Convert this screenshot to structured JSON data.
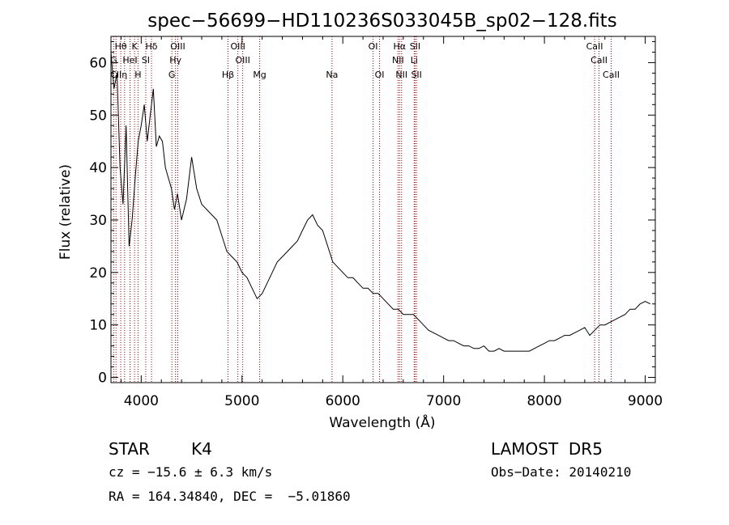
{
  "chart_data": {
    "type": "line",
    "title": "spec−56699−HD110236S033045B_sp02−128.fits",
    "xlabel": "Wavelength (Å)",
    "ylabel": "Flux (relative)",
    "xlim": [
      3700,
      9100
    ],
    "ylim": [
      -1,
      65
    ],
    "x_ticks": [
      4000,
      5000,
      6000,
      7000,
      8000,
      9000
    ],
    "y_ticks": [
      0,
      10,
      20,
      30,
      40,
      50,
      60
    ],
    "grid": false,
    "line_color": "#000000",
    "marker_color": "#aa0000",
    "series": [
      {
        "x": [
          3700,
          3730,
          3760,
          3790,
          3820,
          3850,
          3880,
          3910,
          3940,
          3970,
          4000,
          4030,
          4060,
          4090,
          4120,
          4150,
          4180,
          4210,
          4240,
          4270,
          4300,
          4330,
          4360,
          4400,
          4450,
          4500,
          4550,
          4600,
          4650,
          4700,
          4750,
          4800,
          4850,
          4900,
          4950,
          5000,
          5050,
          5100,
          5150,
          5200,
          5250,
          5300,
          5350,
          5400,
          5450,
          5500,
          5550,
          5600,
          5650,
          5700,
          5750,
          5800,
          5850,
          5900,
          5950,
          6000,
          6050,
          6100,
          6150,
          6200,
          6250,
          6300,
          6350,
          6400,
          6450,
          6500,
          6550,
          6600,
          6650,
          6700,
          6750,
          6800,
          6850,
          6900,
          6950,
          7000,
          7050,
          7100,
          7150,
          7200,
          7250,
          7300,
          7350,
          7400,
          7450,
          7500,
          7550,
          7600,
          7650,
          7700,
          7750,
          7800,
          7850,
          7900,
          7950,
          8000,
          8050,
          8100,
          8150,
          8200,
          8250,
          8300,
          8350,
          8400,
          8450,
          8500,
          8550,
          8600,
          8650,
          8700,
          8750,
          8800,
          8850,
          8900,
          8950,
          9000,
          9050
        ],
        "y": [
          62,
          55,
          58,
          40,
          33,
          48,
          25,
          30,
          38,
          45,
          48,
          52,
          45,
          50,
          55,
          44,
          46,
          45,
          40,
          38,
          36,
          32,
          35,
          30,
          34,
          42,
          36,
          33,
          32,
          31,
          30,
          27,
          24,
          23,
          22,
          20,
          19,
          17,
          15,
          16,
          18,
          20,
          22,
          23,
          24,
          25,
          26,
          28,
          30,
          31,
          29,
          28,
          25,
          22,
          21,
          20,
          19,
          19,
          18,
          17,
          17,
          16,
          16,
          15,
          14,
          13,
          13,
          12,
          12,
          12,
          11,
          10,
          9,
          8.5,
          8,
          7.5,
          7,
          7,
          6.5,
          6,
          6,
          5.5,
          5.5,
          6,
          5,
          5,
          5.5,
          5,
          5,
          5,
          5,
          5,
          5,
          5.5,
          6,
          6.5,
          7,
          7,
          7.5,
          8,
          8,
          8.5,
          9,
          9.5,
          8,
          9,
          10,
          10,
          10.5,
          11,
          11.5,
          12,
          13,
          13,
          14,
          14.5,
          14
        ]
      }
    ],
    "spectral_lines": [
      {
        "label": "Hθ",
        "x": 3797,
        "row": 0
      },
      {
        "label": "K",
        "x": 3934,
        "row": 0
      },
      {
        "label": "Hδ",
        "x": 4102,
        "row": 0
      },
      {
        "label": "OIII",
        "x": 4363,
        "row": 0
      },
      {
        "label": "OIII",
        "x": 4959,
        "row": 0
      },
      {
        "label": "OI",
        "x": 6300,
        "row": 0
      },
      {
        "label": "Hα",
        "x": 6563,
        "row": 0
      },
      {
        "label": "SII",
        "x": 6717,
        "row": 0
      },
      {
        "label": "CaII",
        "x": 8498,
        "row": 0
      },
      {
        "label": "G",
        "x": 3727,
        "row": 1
      },
      {
        "label": "HeI",
        "x": 3889,
        "row": 1
      },
      {
        "label": "SI",
        "x": 4045,
        "row": 1
      },
      {
        "label": "Hγ",
        "x": 4340,
        "row": 1
      },
      {
        "label": "OIII",
        "x": 5007,
        "row": 1
      },
      {
        "label": "Na",
        "x": 5893,
        "row": 2
      },
      {
        "label": "NII",
        "x": 6548,
        "row": 1
      },
      {
        "label": "Li",
        "x": 6708,
        "row": 1
      },
      {
        "label": "CaII",
        "x": 8542,
        "row": 1
      },
      {
        "label": "CII",
        "x": 3750,
        "row": 2
      },
      {
        "label": "η",
        "x": 3835,
        "row": 2
      },
      {
        "label": "H",
        "x": 3968,
        "row": 2
      },
      {
        "label": "G",
        "x": 4304,
        "row": 2
      },
      {
        "label": "Hβ",
        "x": 4861,
        "row": 2
      },
      {
        "label": "Mg",
        "x": 5175,
        "row": 2
      },
      {
        "label": "OI",
        "x": 6364,
        "row": 2
      },
      {
        "label": "NII",
        "x": 6583,
        "row": 2
      },
      {
        "label": "SII",
        "x": 6731,
        "row": 2
      },
      {
        "label": "CaII",
        "x": 8662,
        "row": 2
      }
    ]
  },
  "info": {
    "object_type": "STAR",
    "subclass": "K4",
    "survey": "LAMOST  DR5",
    "cz": "cz = −15.6 ± 6.3 km/s",
    "obs_date": "Obs−Date: 20140210",
    "radec": "RA = 164.34840, DEC =  −5.01860"
  }
}
